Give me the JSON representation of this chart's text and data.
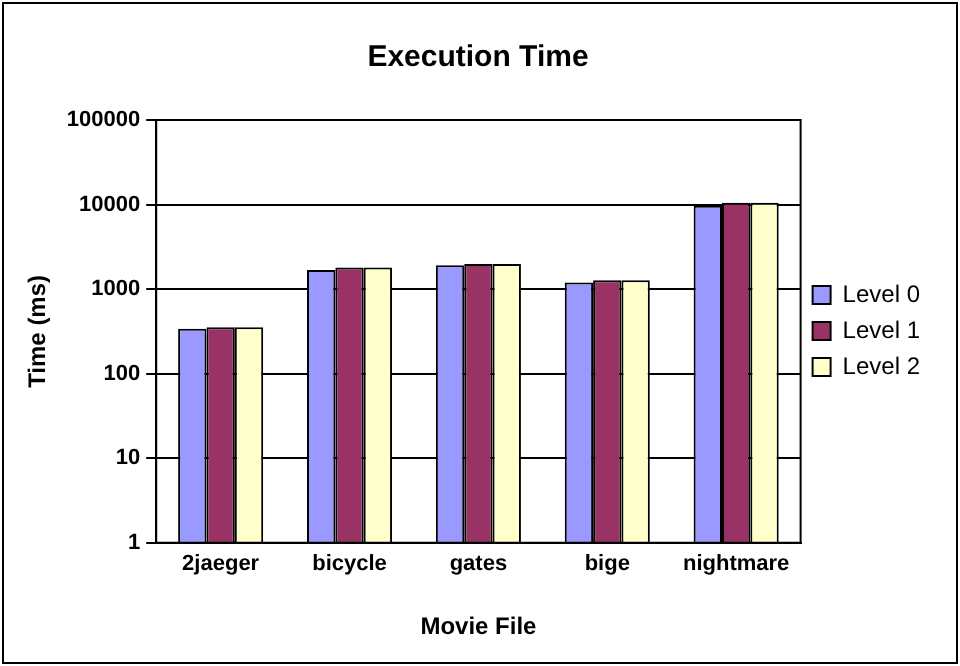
{
  "chart_data": {
    "type": "bar",
    "title": "Execution Time",
    "xlabel": "Movie File",
    "ylabel": "Time (ms)",
    "categories": [
      "2jaeger",
      "bicycle",
      "gates",
      "bige",
      "nightmare"
    ],
    "series": [
      {
        "name": "Level 0",
        "color": "#9999ff",
        "values": [
          340,
          1680,
          1910,
          1200,
          9700
        ]
      },
      {
        "name": "Level 1",
        "color": "#993366",
        "values": [
          355,
          1800,
          1980,
          1270,
          10500
        ]
      },
      {
        "name": "Level 2",
        "color": "#ffffcc",
        "values": [
          355,
          1800,
          1980,
          1270,
          10500
        ]
      }
    ],
    "log": "y",
    "ylim": [
      1,
      100000
    ],
    "yticks": [
      1,
      10,
      100,
      1000,
      10000,
      100000
    ],
    "grid": "y",
    "legend": "right"
  }
}
